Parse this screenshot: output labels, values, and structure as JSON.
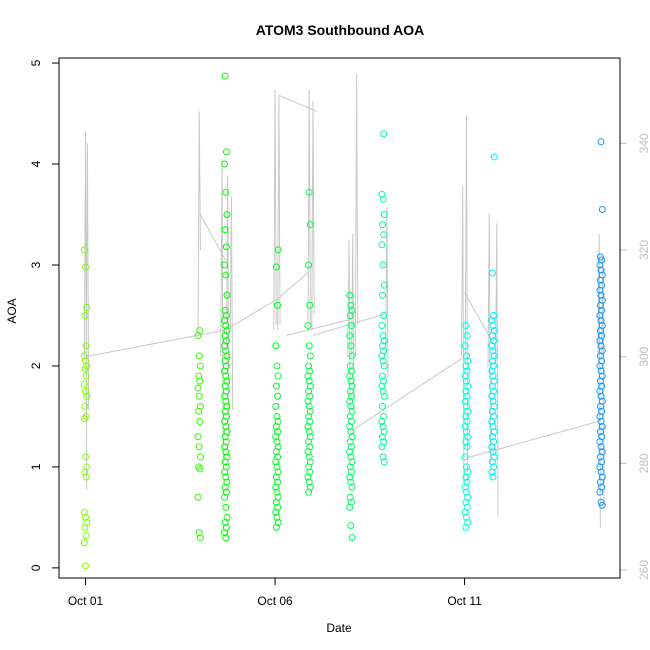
{
  "chart_data": {
    "type": "scatter",
    "title": "ATOM3 Southbound AOA",
    "xlabel": "Date",
    "ylabel": "AOA",
    "x_ticks": [
      {
        "label": "Oct 01",
        "day": 1
      },
      {
        "label": "Oct 06",
        "day": 6
      },
      {
        "label": "Oct 11",
        "day": 11
      }
    ],
    "xlim_days": [
      0.3,
      15.1
    ],
    "ylim": [
      -0.1,
      5.05
    ],
    "y_ticks": [
      0,
      1,
      2,
      3,
      4,
      5
    ],
    "y2lim": [
      258.5,
      356
    ],
    "y2_ticks": [
      260,
      280,
      300,
      320,
      340
    ],
    "y2_color": "#c0c0c0",
    "grid": false,
    "legend": "none",
    "series": [
      {
        "type": "points",
        "color": "#7fff00",
        "x_day": 1.0,
        "values": [
          3.15,
          2.98,
          2.58,
          2.5,
          2.2,
          2.1,
          2.05,
          2.0,
          1.97,
          1.9,
          1.82,
          1.75,
          1.7,
          1.6,
          1.5,
          1.48,
          1.1,
          1.0,
          0.95,
          0.9,
          0.55,
          0.5,
          0.45,
          0.4,
          0.32,
          0.25,
          0.02
        ]
      },
      {
        "type": "points",
        "color": "#33ff00",
        "x_day": 4.0,
        "values": [
          2.35,
          2.3,
          2.1,
          2.0,
          1.9,
          1.85,
          1.78,
          1.7,
          1.6,
          1.55,
          1.45,
          1.3,
          1.2,
          1.1,
          1.0,
          0.98,
          0.7,
          0.35,
          0.3
        ]
      },
      {
        "type": "points",
        "color": "#00ff00",
        "x_day": 4.7,
        "values": [
          4.87,
          4.12,
          4.0,
          3.72,
          3.5,
          3.35,
          3.18,
          3.0,
          2.9,
          2.7,
          2.55,
          2.5,
          2.45,
          2.4,
          2.35,
          2.3,
          2.25,
          2.2,
          2.15,
          2.1,
          2.05,
          2.0,
          1.95,
          1.9,
          1.85,
          1.8,
          1.75,
          1.7,
          1.65,
          1.6,
          1.55,
          1.5,
          1.45,
          1.4,
          1.35,
          1.3,
          1.25,
          1.2,
          1.15,
          1.1,
          1.05,
          1.0,
          0.95,
          0.9,
          0.85,
          0.8,
          0.75,
          0.7,
          0.6,
          0.5,
          0.45,
          0.4,
          0.35,
          0.3
        ]
      },
      {
        "type": "points",
        "color": "#00ff22",
        "x_day": 6.05,
        "values": [
          3.15,
          2.98,
          2.6,
          2.2,
          2.0,
          1.9,
          1.8,
          1.7,
          1.6,
          1.5,
          1.45,
          1.4,
          1.35,
          1.3,
          1.25,
          1.2,
          1.15,
          1.1,
          1.05,
          1.0,
          0.95,
          0.9,
          0.85,
          0.8,
          0.75,
          0.7,
          0.65,
          0.6,
          0.55,
          0.5,
          0.45,
          0.4
        ]
      },
      {
        "type": "points",
        "color": "#00ff44",
        "x_day": 6.9,
        "values": [
          3.72,
          3.4,
          3.0,
          2.6,
          2.4,
          2.2,
          2.1,
          2.0,
          1.95,
          1.9,
          1.85,
          1.8,
          1.75,
          1.7,
          1.65,
          1.6,
          1.55,
          1.5,
          1.45,
          1.4,
          1.35,
          1.3,
          1.25,
          1.2,
          1.15,
          1.1,
          1.05,
          1.0,
          0.95,
          0.9,
          0.85,
          0.8,
          0.75
        ]
      },
      {
        "type": "points",
        "color": "#00ff66",
        "x_day": 8.0,
        "values": [
          2.7,
          2.6,
          2.55,
          2.5,
          2.4,
          2.3,
          2.2,
          2.1,
          2.0,
          1.95,
          1.9,
          1.85,
          1.8,
          1.75,
          1.7,
          1.65,
          1.6,
          1.55,
          1.5,
          1.45,
          1.4,
          1.35,
          1.3,
          1.25,
          1.2,
          1.15,
          1.1,
          1.05,
          1.0,
          0.95,
          0.9,
          0.85,
          0.8,
          0.7,
          0.65,
          0.6,
          0.42,
          0.3
        ]
      },
      {
        "type": "points",
        "color": "#00ff99",
        "x_day": 8.85,
        "values": [
          4.3,
          3.7,
          3.65,
          3.5,
          3.4,
          3.3,
          3.2,
          3.0,
          2.8,
          2.7,
          2.5,
          2.4,
          2.3,
          2.25,
          2.2,
          2.15,
          2.1,
          2.05,
          2.0,
          1.9,
          1.85,
          1.8,
          1.75,
          1.7,
          1.6,
          1.5,
          1.45,
          1.4,
          1.35,
          1.3,
          1.25,
          1.2,
          1.1,
          1.05
        ]
      },
      {
        "type": "points",
        "color": "#00ffdd",
        "x_day": 11.05,
        "values": [
          2.4,
          2.3,
          2.2,
          2.1,
          2.05,
          2.0,
          1.95,
          1.9,
          1.85,
          1.8,
          1.75,
          1.7,
          1.65,
          1.6,
          1.55,
          1.5,
          1.45,
          1.4,
          1.35,
          1.3,
          1.25,
          1.2,
          1.1,
          1.0,
          0.95,
          0.9,
          0.85,
          0.8,
          0.75,
          0.7,
          0.65,
          0.6,
          0.55,
          0.5,
          0.45,
          0.4
        ]
      },
      {
        "type": "points",
        "color": "#00eeff",
        "x_day": 11.75,
        "values": [
          4.07,
          2.92,
          2.5,
          2.45,
          2.4,
          2.35,
          2.3,
          2.25,
          2.2,
          2.15,
          2.1,
          2.05,
          2.0,
          1.95,
          1.9,
          1.85,
          1.8,
          1.75,
          1.7,
          1.65,
          1.6,
          1.55,
          1.5,
          1.45,
          1.4,
          1.35,
          1.3,
          1.25,
          1.2,
          1.15,
          1.1,
          1.05,
          1.0,
          0.95,
          0.9
        ]
      },
      {
        "type": "points",
        "color": "#1199ff",
        "x_day": 14.6,
        "values": [
          4.22,
          3.55,
          3.08,
          3.05,
          3.0,
          2.95,
          2.9,
          2.85,
          2.8,
          2.75,
          2.7,
          2.65,
          2.6,
          2.55,
          2.5,
          2.45,
          2.4,
          2.35,
          2.3,
          2.25,
          2.2,
          2.15,
          2.1,
          2.05,
          2.0,
          1.95,
          1.9,
          1.85,
          1.8,
          1.75,
          1.7,
          1.65,
          1.6,
          1.55,
          1.5,
          1.45,
          1.4,
          1.35,
          1.3,
          1.25,
          1.2,
          1.15,
          1.1,
          1.05,
          1.0,
          0.95,
          0.9,
          0.85,
          0.8,
          0.75,
          0.65,
          0.62
        ]
      }
    ],
    "secondary_series": {
      "axis": "right",
      "color": "#c8c8c8",
      "spikes": [
        {
          "x_day": 1.0,
          "y2": [
            300,
            342,
            275
          ]
        },
        {
          "x_day": 1.05,
          "y2": [
            300,
            340,
            290
          ]
        },
        {
          "x_day": 4.0,
          "y2": [
            305,
            346,
            320
          ]
        },
        {
          "x_day": 4.6,
          "y2": [
            300,
            337,
            280
          ]
        },
        {
          "x_day": 4.75,
          "y2": [
            300,
            334,
            285
          ]
        },
        {
          "x_day": 4.85,
          "y2": [
            305,
            330,
            290
          ]
        },
        {
          "x_day": 6.0,
          "y2": [
            305,
            350,
            306
          ]
        },
        {
          "x_day": 6.1,
          "y2": [
            305,
            349,
            306
          ]
        },
        {
          "x_day": 6.9,
          "y2": [
            305,
            350,
            306
          ]
        },
        {
          "x_day": 7.0,
          "y2": [
            305,
            348,
            308
          ]
        },
        {
          "x_day": 7.95,
          "y2": [
            300,
            322,
            290
          ]
        },
        {
          "x_day": 8.05,
          "y2": [
            300,
            323,
            290
          ]
        },
        {
          "x_day": 8.15,
          "y2": [
            300,
            353,
            306
          ]
        },
        {
          "x_day": 8.95,
          "y2": [
            300,
            328,
            296
          ]
        },
        {
          "x_day": 10.95,
          "y2": [
            300,
            332,
            276
          ]
        },
        {
          "x_day": 11.05,
          "y2": [
            300,
            345,
            276
          ]
        },
        {
          "x_day": 11.65,
          "y2": [
            298,
            327,
            280
          ]
        },
        {
          "x_day": 11.85,
          "y2": [
            298,
            325,
            270
          ]
        },
        {
          "x_day": 14.55,
          "y2": [
            300,
            323,
            268
          ]
        },
        {
          "x_day": 14.65,
          "y2": [
            300,
            319,
            272
          ]
        }
      ],
      "connectors": [
        {
          "x_day": [
            1.0,
            4.7
          ],
          "y2": [
            300,
            305
          ]
        },
        {
          "x_day": [
            4.0,
            4.7
          ],
          "y2": [
            327,
            318
          ]
        },
        {
          "x_day": [
            4.7,
            6.1
          ],
          "y2": [
            305,
            311
          ]
        },
        {
          "x_day": [
            6.1,
            6.9
          ],
          "y2": [
            311,
            316
          ]
        },
        {
          "x_day": [
            6.1,
            7.1
          ],
          "y2": [
            349,
            346
          ]
        },
        {
          "x_day": [
            6.3,
            8.0
          ],
          "y2": [
            304,
            307
          ]
        },
        {
          "x_day": [
            7.0,
            8.9
          ],
          "y2": [
            304,
            308
          ]
        },
        {
          "x_day": [
            8.0,
            11.0
          ],
          "y2": [
            286,
            300
          ]
        },
        {
          "x_day": [
            11.0,
            11.8
          ],
          "y2": [
            312,
            302
          ]
        },
        {
          "x_day": [
            11.05,
            14.6
          ],
          "y2": [
            281,
            288
          ]
        }
      ]
    }
  }
}
